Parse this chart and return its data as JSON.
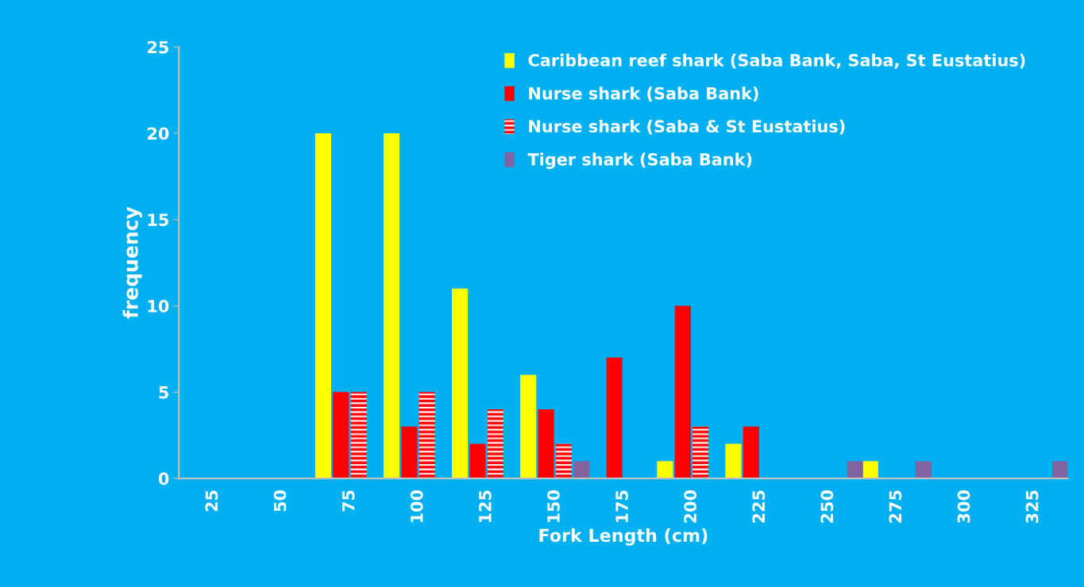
{
  "chart_data": {
    "type": "bar",
    "xlabel": "Fork Length (cm)",
    "ylabel": "frequency",
    "categories": [
      "25",
      "50",
      "75",
      "100",
      "125",
      "150",
      "175",
      "200",
      "225",
      "250",
      "275",
      "300",
      "325"
    ],
    "series": [
      {
        "name": "Caribbean reef shark (Saba Bank, Saba, St Eustatius)",
        "color": "#ffff00",
        "values": [
          0,
          0,
          20,
          20,
          11,
          6,
          0,
          1,
          2,
          0,
          1,
          0,
          0
        ]
      },
      {
        "name": "Nurse shark (Saba Bank)",
        "color": "#ff0000",
        "values": [
          0,
          0,
          5,
          3,
          2,
          4,
          7,
          10,
          3,
          0,
          0,
          0,
          0
        ]
      },
      {
        "name": "Nurse shark (Saba & St Eustatius)",
        "color": "#ff0000",
        "values": [
          0,
          0,
          5,
          5,
          4,
          2,
          0,
          3,
          0,
          0,
          0,
          0,
          0
        ]
      },
      {
        "name": "Tiger shark (Saba Bank)",
        "color": "#8064a2",
        "values": [
          0,
          0,
          0,
          0,
          0,
          1,
          0,
          0,
          0,
          1,
          1,
          0,
          1
        ]
      }
    ],
    "ylim": [
      0,
      25
    ],
    "yticks": [
      0,
      5,
      10,
      15,
      20,
      25
    ],
    "grid": false,
    "legend": "top right"
  }
}
